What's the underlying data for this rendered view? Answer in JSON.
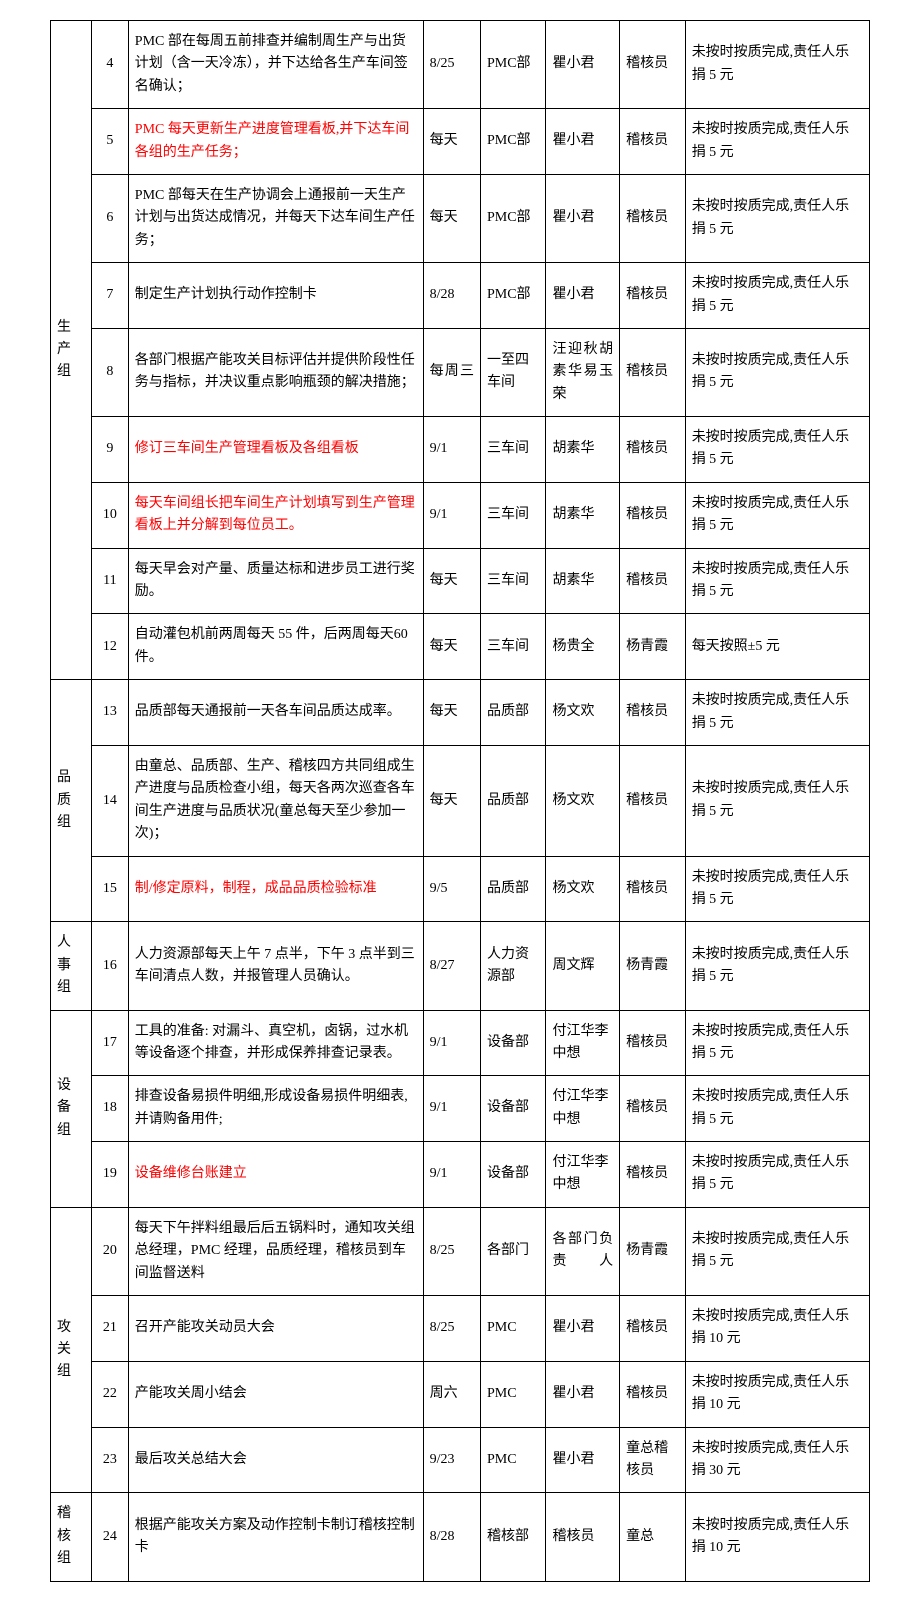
{
  "colors": {
    "text_red": "#ff0000",
    "text_black": "#000000",
    "border": "#000000",
    "background": "#ffffff"
  },
  "font": {
    "family": "SimSun",
    "size_pt": 10.5,
    "line_height": 1.6
  },
  "columns": {
    "group": {
      "width_pct": 5
    },
    "num": {
      "width_pct": 4.5
    },
    "task": {
      "width_pct": 36
    },
    "date": {
      "width_pct": 7
    },
    "dept": {
      "width_pct": 8
    },
    "owner": {
      "width_pct": 9
    },
    "check": {
      "width_pct": 8
    },
    "note": {
      "width_pct": 22.5
    }
  },
  "note_default": "未按时按质完成,责任人乐捐 5 元",
  "note_10": "未按时按质完成,责任人乐捐 10 元",
  "note_30": "未按时按质完成,责任人乐捐 30 元",
  "note_photo": "每天按照±5 元",
  "groups": {
    "prod": "生产组",
    "qc": "品质组",
    "hr": "人事组",
    "equip": "设备组",
    "attack": "攻关组",
    "audit": "稽核组"
  },
  "rows": {
    "r4": {
      "num": "4",
      "task": "PMC 部在每周五前排查并编制周生产与出货计划（含一天冷冻），并下达给各生产车间签名确认；",
      "date": "8/25",
      "dept": "PMC部",
      "owner": "瞿小君",
      "check": "稽核员"
    },
    "r5": {
      "num": "5",
      "task": "PMC 每天更新生产进度管理看板,并下达车间各组的生产任务；",
      "date": "每天",
      "dept": "PMC部",
      "owner": "瞿小君",
      "check": "稽核员"
    },
    "r6": {
      "num": "6",
      "task": "PMC 部每天在生产协调会上通报前一天生产计划与出货达成情况，并每天下达车间生产任务；",
      "date": "每天",
      "dept": "PMC部",
      "owner": "瞿小君",
      "check": "稽核员"
    },
    "r7": {
      "num": "7",
      "task": "制定生产计划执行动作控制卡",
      "date": "8/28",
      "dept": "PMC部",
      "owner": "瞿小君",
      "check": "稽核员"
    },
    "r8": {
      "num": "8",
      "task": "各部门根据产能攻关目标评估并提供阶段性任务与指标，并决议重点影响瓶颈的解决措施；",
      "date": "每周三",
      "dept": "一至四车间",
      "owner": "汪迎秋胡素华易玉荣",
      "check": "稽核员"
    },
    "r9": {
      "num": "9",
      "task": "修订三车间生产管理看板及各组看板",
      "date": "9/1",
      "dept": "三车间",
      "owner": "胡素华",
      "check": "稽核员"
    },
    "r10": {
      "num": "10",
      "task": "每天车间组长把车间生产计划填写到生产管理看板上并分解到每位员工。",
      "date": "9/1",
      "dept": "三车间",
      "owner": "胡素华",
      "check": "稽核员"
    },
    "r11": {
      "num": "11",
      "task": "每天早会对产量、质量达标和进步员工进行奖励。",
      "date": "每天",
      "dept": "三车间",
      "owner": "胡素华",
      "check": "稽核员"
    },
    "r12": {
      "num": "12",
      "task": "自动灌包机前两周每天 55 件，后两周每天60 件。",
      "date": "每天",
      "dept": "三车间",
      "owner": "杨贵全",
      "check": "杨青霞"
    },
    "r13": {
      "num": "13",
      "task": "品质部每天通报前一天各车间品质达成率。",
      "date": "每天",
      "dept": "品质部",
      "owner": "杨文欢",
      "check": "稽核员"
    },
    "r14": {
      "num": "14",
      "task": "由童总、品质部、生产、稽核四方共同组成生产进度与品质检查小组，每天各两次巡查各车间生产进度与品质状况(童总每天至少参加一次)；",
      "date": "每天",
      "dept": "品质部",
      "owner": "杨文欢",
      "check": "稽核员"
    },
    "r15": {
      "num": "15",
      "task": "制/修定原料，制程，成品品质检验标准",
      "date": "9/5",
      "dept": "品质部",
      "owner": "杨文欢",
      "check": "稽核员"
    },
    "r16": {
      "num": "16",
      "task": "人力资源部每天上午 7 点半，下午 3 点半到三车间清点人数，并报管理人员确认。",
      "date": "8/27",
      "dept": "人力资源部",
      "owner": "周文辉",
      "check": "杨青霞"
    },
    "r17": {
      "num": "17",
      "task": "工具的准备: 对漏斗、真空机，卤锅，过水机等设备逐个排查，并形成保养排查记录表。",
      "date": "9/1",
      "dept": "设备部",
      "owner": "付江华李中想",
      "check": "稽核员"
    },
    "r18": {
      "num": "18",
      "task": "排查设备易损件明细,形成设备易损件明细表,并请购备用件;",
      "date": "9/1",
      "dept": "设备部",
      "owner": "付江华李中想",
      "check": "稽核员"
    },
    "r19": {
      "num": "19",
      "task": "设备维修台账建立",
      "date": "9/1",
      "dept": "设备部",
      "owner": "付江华李中想",
      "check": "稽核员"
    },
    "r20": {
      "num": "20",
      "task": "每天下午拌料组最后后五锅料时，通知攻关组总经理，PMC 经理，品质经理，稽核员到车间监督送料",
      "date": "8/25",
      "dept": "各部门",
      "owner": "各部门负责人",
      "check": "杨青霞"
    },
    "r21": {
      "num": "21",
      "task": "召开产能攻关动员大会",
      "date": "8/25",
      "dept": "PMC",
      "owner": "瞿小君",
      "check": "稽核员"
    },
    "r22": {
      "num": "22",
      "task": "产能攻关周小结会",
      "date": "周六",
      "dept": "PMC",
      "owner": "瞿小君",
      "check": "稽核员"
    },
    "r23": {
      "num": "23",
      "task": "最后攻关总结大会",
      "date": "9/23",
      "dept": "PMC",
      "owner": "瞿小君",
      "check": "童总稽核员"
    },
    "r24": {
      "num": "24",
      "task": "根据产能攻关方案及动作控制卡制订稽核控制卡",
      "date": "8/28",
      "dept": "稽核部",
      "owner": "稽核员",
      "check": "童总"
    }
  }
}
